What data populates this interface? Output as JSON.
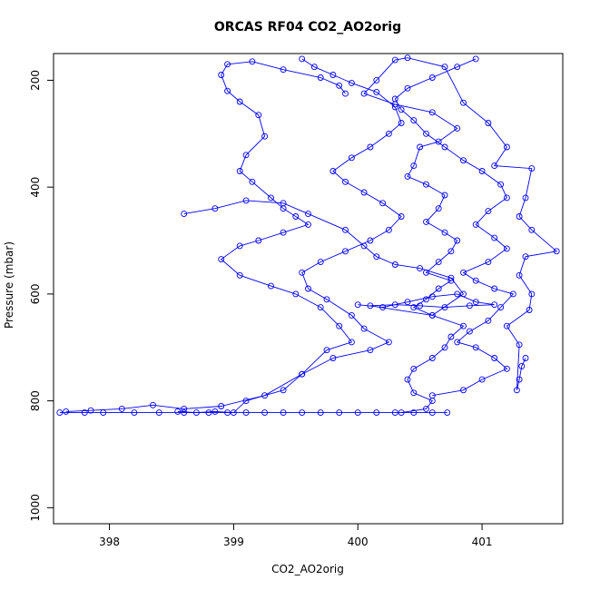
{
  "chart_data": {
    "type": "line",
    "title": "ORCAS RF04 CO2_AO2orig",
    "xlabel": "CO2_AO2orig",
    "ylabel": "Pressure (mbar)",
    "xlim": [
      397.55,
      401.65
    ],
    "ylim": [
      1030,
      150
    ],
    "y_reversed": true,
    "x_ticks": [
      398,
      399,
      400,
      401
    ],
    "y_ticks": [
      200,
      400,
      600,
      800,
      1000
    ],
    "grid": false,
    "series": [
      {
        "color": "#0000ff",
        "marker": "open-circle",
        "points": [
          [
            401.35,
            720
          ],
          [
            401.32,
            735
          ],
          [
            401.3,
            760
          ],
          [
            401.28,
            780
          ],
          [
            401.3,
            695
          ],
          [
            401.2,
            660
          ],
          [
            401.38,
            630
          ],
          [
            401.4,
            600
          ],
          [
            401.3,
            565
          ],
          [
            401.35,
            530
          ],
          [
            401.6,
            520
          ],
          [
            401.4,
            480
          ],
          [
            401.3,
            455
          ],
          [
            401.35,
            420
          ],
          [
            401.4,
            365
          ],
          [
            401.1,
            360
          ],
          [
            401.2,
            325
          ],
          [
            401.05,
            280
          ],
          [
            400.85,
            242
          ],
          [
            400.7,
            175
          ],
          [
            400.4,
            158
          ],
          [
            400.3,
            162
          ],
          [
            400.15,
            200
          ],
          [
            400.05,
            225
          ],
          [
            400.3,
            245
          ],
          [
            400.6,
            260
          ],
          [
            400.8,
            290
          ],
          [
            400.65,
            315
          ],
          [
            400.5,
            325
          ],
          [
            400.45,
            360
          ],
          [
            400.4,
            380
          ],
          [
            400.55,
            395
          ],
          [
            400.7,
            415
          ],
          [
            400.65,
            440
          ],
          [
            400.55,
            465
          ],
          [
            400.7,
            485
          ],
          [
            400.8,
            500
          ],
          [
            400.75,
            520
          ],
          [
            400.65,
            540
          ],
          [
            400.55,
            560
          ],
          [
            400.75,
            575
          ],
          [
            400.65,
            590
          ],
          [
            400.55,
            610
          ],
          [
            400.45,
            625
          ],
          [
            400.6,
            640
          ],
          [
            400.85,
            660
          ],
          [
            400.75,
            680
          ],
          [
            400.7,
            700
          ],
          [
            400.6,
            720
          ],
          [
            400.45,
            740
          ],
          [
            400.4,
            760
          ],
          [
            400.45,
            785
          ],
          [
            400.6,
            800
          ],
          [
            400.55,
            815
          ],
          [
            400.35,
            822
          ]
        ]
      },
      {
        "color": "#0000ff",
        "marker": "open-circle",
        "points": [
          [
            398.55,
            820
          ],
          [
            398.7,
            822
          ],
          [
            398.85,
            820
          ],
          [
            399.0,
            822
          ],
          [
            399.1,
            800
          ],
          [
            399.4,
            780
          ],
          [
            399.55,
            750
          ],
          [
            399.8,
            720
          ],
          [
            400.1,
            705
          ],
          [
            400.25,
            690
          ],
          [
            400.05,
            665
          ],
          [
            399.95,
            640
          ],
          [
            399.75,
            610
          ],
          [
            399.6,
            590
          ],
          [
            399.55,
            560
          ],
          [
            399.7,
            540
          ],
          [
            399.9,
            520
          ],
          [
            400.1,
            500
          ],
          [
            400.25,
            480
          ],
          [
            400.35,
            455
          ],
          [
            400.2,
            430
          ],
          [
            400.05,
            410
          ],
          [
            399.9,
            390
          ],
          [
            399.8,
            370
          ],
          [
            399.95,
            345
          ],
          [
            400.1,
            325
          ],
          [
            400.25,
            300
          ],
          [
            400.35,
            280
          ],
          [
            400.3,
            250
          ],
          [
            400.15,
            222
          ],
          [
            399.95,
            205
          ],
          [
            399.8,
            190
          ],
          [
            399.65,
            175
          ],
          [
            399.55,
            160
          ]
        ]
      },
      {
        "color": "#0000ff",
        "marker": "open-circle",
        "points": [
          [
            399.9,
            225
          ],
          [
            399.85,
            210
          ],
          [
            399.7,
            195
          ],
          [
            399.4,
            180
          ],
          [
            399.15,
            165
          ],
          [
            398.95,
            170
          ],
          [
            398.9,
            190
          ],
          [
            398.95,
            220
          ],
          [
            399.05,
            240
          ],
          [
            399.2,
            265
          ],
          [
            399.25,
            305
          ],
          [
            399.1,
            340
          ],
          [
            399.05,
            370
          ],
          [
            399.15,
            390
          ],
          [
            399.3,
            420
          ],
          [
            399.4,
            440
          ],
          [
            399.5,
            455
          ],
          [
            399.6,
            470
          ],
          [
            399.4,
            485
          ],
          [
            399.2,
            500
          ],
          [
            399.05,
            510
          ],
          [
            398.9,
            535
          ],
          [
            399.05,
            565
          ],
          [
            399.3,
            585
          ],
          [
            399.5,
            600
          ],
          [
            399.7,
            625
          ],
          [
            399.85,
            660
          ],
          [
            399.95,
            690
          ],
          [
            399.75,
            705
          ],
          [
            399.55,
            750
          ],
          [
            399.25,
            790
          ],
          [
            398.9,
            810
          ],
          [
            398.6,
            815
          ],
          [
            398.35,
            808
          ],
          [
            398.1,
            815
          ],
          [
            397.85,
            818
          ],
          [
            397.65,
            820
          ]
        ]
      },
      {
        "color": "#0000ff",
        "marker": "open-circle",
        "points": [
          [
            397.6,
            822
          ],
          [
            397.8,
            822
          ],
          [
            397.95,
            822
          ],
          [
            398.2,
            822
          ],
          [
            398.4,
            822
          ],
          [
            398.6,
            822
          ],
          [
            398.8,
            822
          ],
          [
            398.95,
            822
          ],
          [
            399.1,
            822
          ],
          [
            399.25,
            822
          ],
          [
            399.4,
            822
          ],
          [
            399.55,
            822
          ],
          [
            399.7,
            822
          ],
          [
            399.85,
            822
          ],
          [
            400.0,
            822
          ],
          [
            400.15,
            822
          ],
          [
            400.3,
            822
          ],
          [
            400.45,
            822
          ],
          [
            400.6,
            822
          ],
          [
            400.72,
            822
          ]
        ]
      },
      {
        "color": "#0000ff",
        "marker": "open-circle",
        "points": [
          [
            400.6,
            790
          ],
          [
            400.85,
            780
          ],
          [
            401.0,
            760
          ],
          [
            401.2,
            740
          ],
          [
            401.1,
            720
          ],
          [
            400.95,
            700
          ],
          [
            400.8,
            690
          ],
          [
            400.9,
            670
          ],
          [
            401.05,
            650
          ],
          [
            401.15,
            625
          ],
          [
            401.25,
            600
          ],
          [
            401.1,
            590
          ],
          [
            400.95,
            575
          ],
          [
            400.85,
            560
          ],
          [
            401.05,
            540
          ],
          [
            401.2,
            515
          ],
          [
            401.1,
            495
          ],
          [
            400.95,
            470
          ],
          [
            401.05,
            445
          ],
          [
            401.2,
            420
          ],
          [
            401.15,
            395
          ],
          [
            401.0,
            370
          ],
          [
            400.85,
            350
          ],
          [
            400.7,
            325
          ],
          [
            400.55,
            300
          ],
          [
            400.45,
            275
          ],
          [
            400.35,
            255
          ],
          [
            400.3,
            235
          ],
          [
            400.4,
            215
          ],
          [
            400.6,
            195
          ],
          [
            400.8,
            175
          ],
          [
            400.95,
            160
          ]
        ]
      },
      {
        "color": "#0000ff",
        "marker": "open-circle",
        "points": [
          [
            400.0,
            620
          ],
          [
            400.2,
            625
          ],
          [
            400.4,
            615
          ],
          [
            400.6,
            605
          ],
          [
            400.8,
            600
          ],
          [
            400.95,
            615
          ],
          [
            401.1,
            620
          ],
          [
            400.9,
            622
          ],
          [
            400.7,
            625
          ],
          [
            400.5,
            622
          ],
          [
            400.3,
            620
          ],
          [
            400.1,
            622
          ],
          [
            400.6,
            640
          ],
          [
            400.85,
            600
          ],
          [
            400.75,
            570
          ],
          [
            400.5,
            552
          ],
          [
            400.3,
            545
          ],
          [
            400.15,
            530
          ],
          [
            400.05,
            510
          ],
          [
            399.9,
            480
          ],
          [
            399.6,
            450
          ],
          [
            399.4,
            430
          ],
          [
            399.1,
            425
          ],
          [
            398.85,
            440
          ],
          [
            398.6,
            450
          ]
        ]
      }
    ]
  }
}
